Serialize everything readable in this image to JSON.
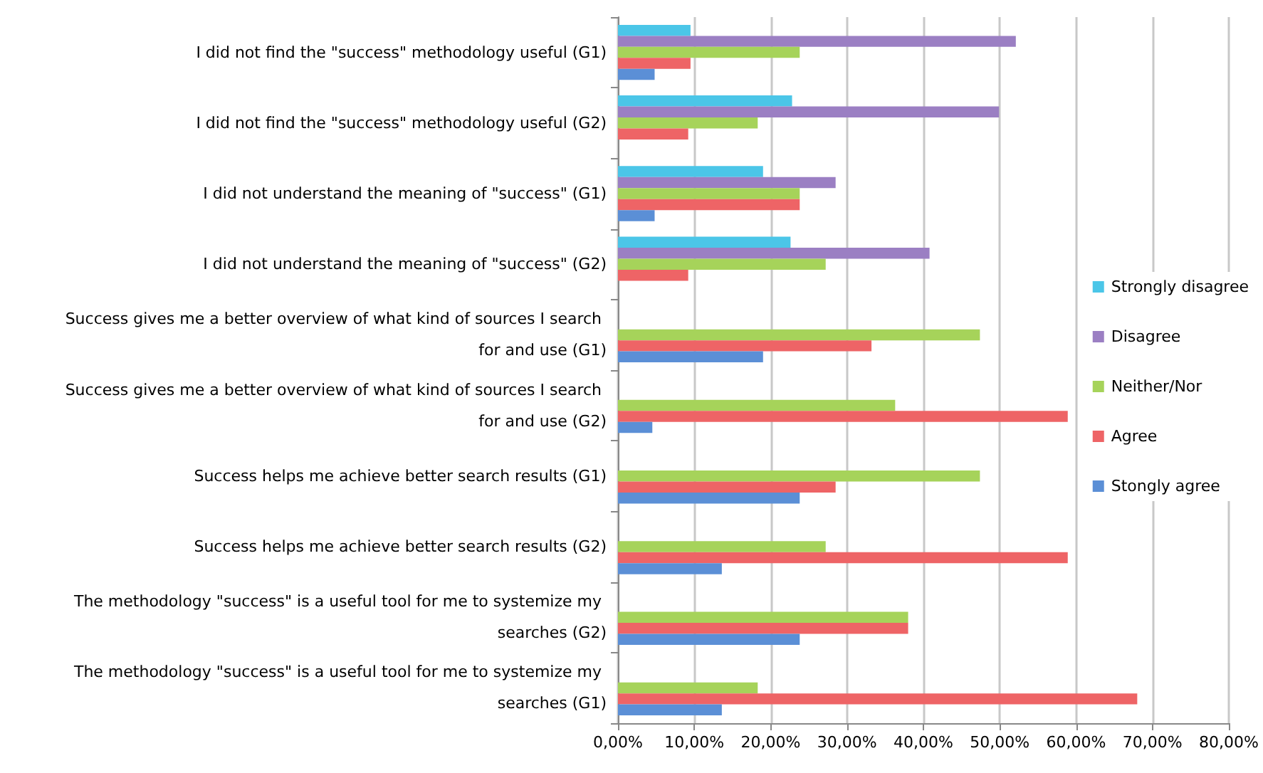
{
  "chart_data": {
    "type": "bar",
    "orientation": "horizontal",
    "categories": [
      "I did not find the \"success\" methodology useful (G1)",
      "I did not find the \"success\" methodology useful (G2)",
      "I did not understand the meaning of \"success\" (G1)",
      "I did not understand the meaning of \"success\" (G2)",
      "Success gives me a better overview of what kind of sources I search for and use (G1)",
      "Success gives me a better overview of what kind of sources I search for and use (G2)",
      "Success helps me achieve better search results (G1)",
      "Success helps me achieve better search results (G2)",
      "The methodology \"success\" is a useful tool for me to systemize my searches (G2)",
      "The methodology \"success\" is a useful tool for me to systemize my searches (G1)"
    ],
    "series": [
      {
        "name": "Strongly disagree",
        "color": "#4bc6e8",
        "values": [
          9.5,
          22.8,
          19.0,
          22.6,
          0,
          0,
          0,
          0,
          0,
          0
        ]
      },
      {
        "name": "Disagree",
        "color": "#9b7fc3",
        "values": [
          52.1,
          49.9,
          28.5,
          40.8,
          0,
          0,
          0,
          0,
          0,
          0
        ]
      },
      {
        "name": "Neither/Nor",
        "color": "#a6d35a",
        "values": [
          23.8,
          18.3,
          23.8,
          27.2,
          47.4,
          36.3,
          47.4,
          27.2,
          38.0,
          18.3
        ]
      },
      {
        "name": "Agree",
        "color": "#ee6466",
        "values": [
          9.5,
          9.2,
          23.8,
          9.2,
          33.2,
          58.9,
          28.5,
          58.9,
          38.0,
          68.0
        ]
      },
      {
        "name": "Stongly agree",
        "color": "#5b8fd6",
        "values": [
          4.8,
          0,
          4.8,
          0,
          19.0,
          4.5,
          23.8,
          13.6,
          23.8,
          13.6
        ]
      }
    ],
    "xlim": [
      0,
      80
    ],
    "xticks": [
      {
        "value": 0,
        "label": "0,00%"
      },
      {
        "value": 10,
        "label": "10,00%"
      },
      {
        "value": 20,
        "label": "20,00%"
      },
      {
        "value": 30,
        "label": "30,00%"
      },
      {
        "value": 40,
        "label": "40,00%"
      },
      {
        "value": 50,
        "label": "50,00%"
      },
      {
        "value": 60,
        "label": "60,00%"
      },
      {
        "value": 70,
        "label": "70,00%"
      },
      {
        "value": 80,
        "label": "80,00%"
      }
    ],
    "grid": "x",
    "legend": "right"
  }
}
